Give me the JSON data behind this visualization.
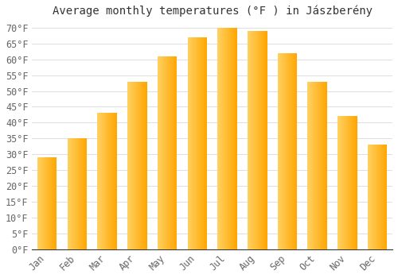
{
  "title": "Average monthly temperatures (°F ) in Jászberény",
  "months": [
    "Jan",
    "Feb",
    "Mar",
    "Apr",
    "May",
    "Jun",
    "Jul",
    "Aug",
    "Sep",
    "Oct",
    "Nov",
    "Dec"
  ],
  "values": [
    29,
    35,
    43,
    53,
    61,
    67,
    70,
    69,
    62,
    53,
    42,
    33
  ],
  "bar_color_left": "#FFD060",
  "bar_color_right": "#FFA500",
  "background_color": "#FFFFFF",
  "grid_color": "#E0E0E0",
  "ylim": [
    0,
    72
  ],
  "yticks": [
    0,
    5,
    10,
    15,
    20,
    25,
    30,
    35,
    40,
    45,
    50,
    55,
    60,
    65,
    70
  ],
  "ylabel_suffix": "°F",
  "title_fontsize": 10,
  "tick_fontsize": 8.5,
  "bar_width": 0.65
}
